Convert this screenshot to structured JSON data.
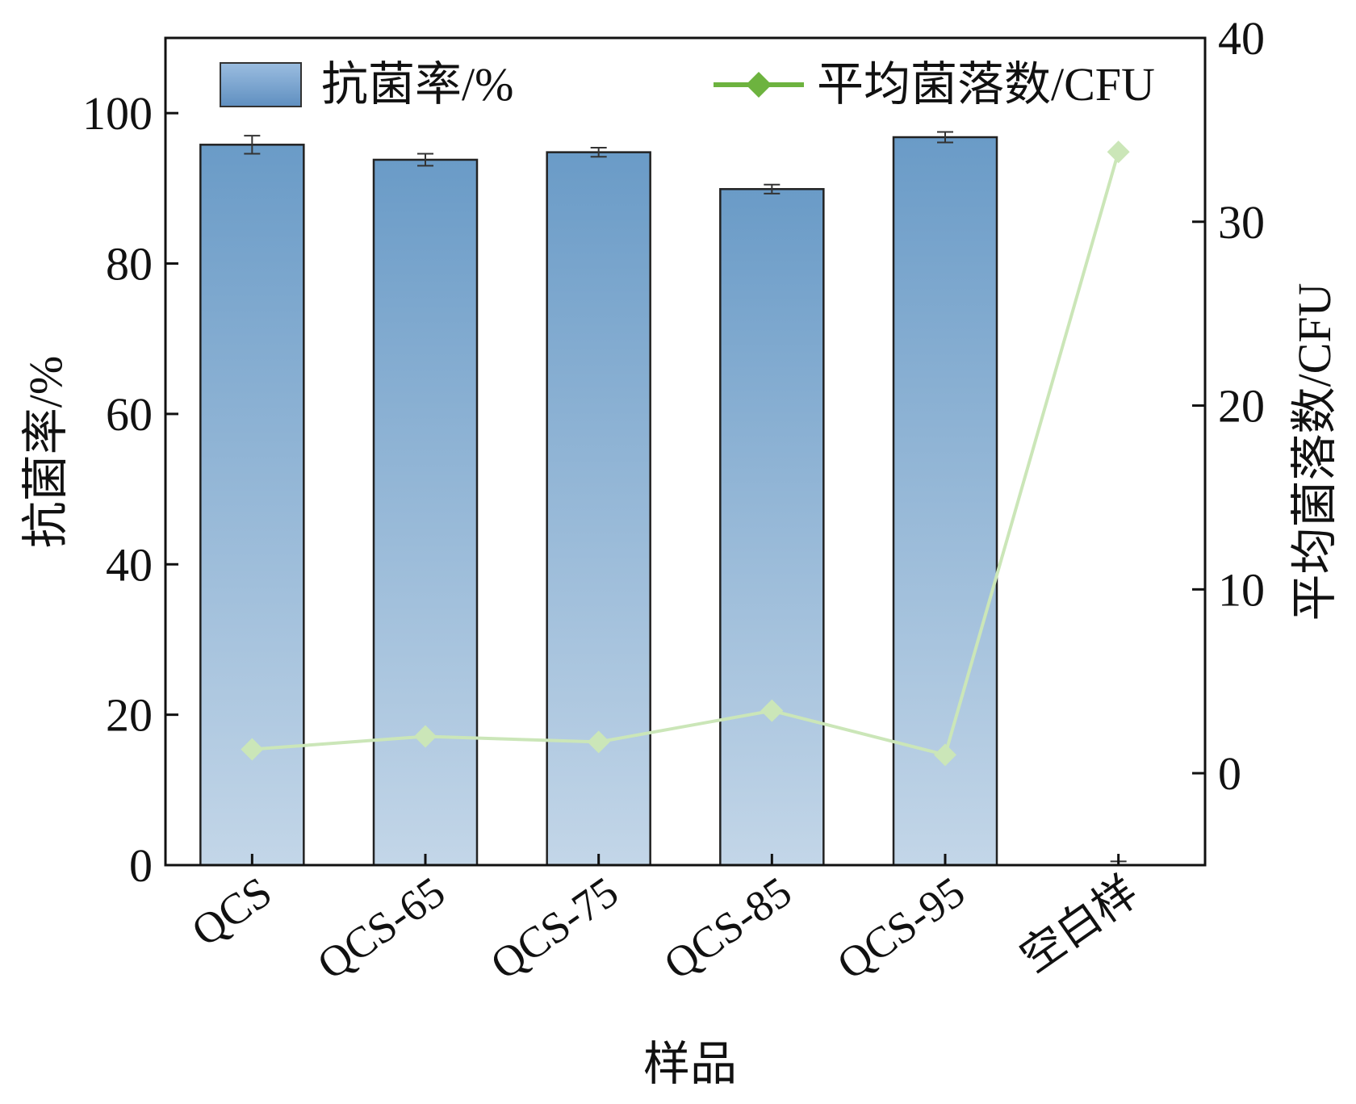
{
  "chart_data": {
    "type": "bar",
    "categories": [
      "QCS",
      "QCS-65",
      "QCS-75",
      "QCS-85",
      "QCS-95",
      "空白样"
    ],
    "xlabel": "样品",
    "ylabel": "抗菌率/%",
    "y2label": "平均菌落数/CFU",
    "ylim": [
      0,
      110
    ],
    "y2lim": [
      -5,
      40
    ],
    "yticks": [
      0,
      20,
      40,
      60,
      80,
      100
    ],
    "y2ticks": [
      0,
      10,
      20,
      30,
      40
    ],
    "grid": false,
    "legend_position": "top",
    "series": [
      {
        "name": "抗菌率/%",
        "type": "bar",
        "axis": "left",
        "values": [
          95.8,
          93.8,
          94.8,
          89.9,
          96.8,
          0
        ],
        "errors": [
          1.2,
          0.8,
          0.6,
          0.6,
          0.7,
          0.5
        ],
        "color_top": "#6a9bc7",
        "color_bottom": "#c3d6e8"
      },
      {
        "name": "平均菌落数/CFU",
        "type": "line",
        "axis": "right",
        "marker": "diamond",
        "values": [
          1.3,
          2.0,
          1.7,
          3.4,
          1.0,
          33.8
        ],
        "color": "#cbe6b8",
        "legend_color": "#6db33f"
      }
    ]
  }
}
